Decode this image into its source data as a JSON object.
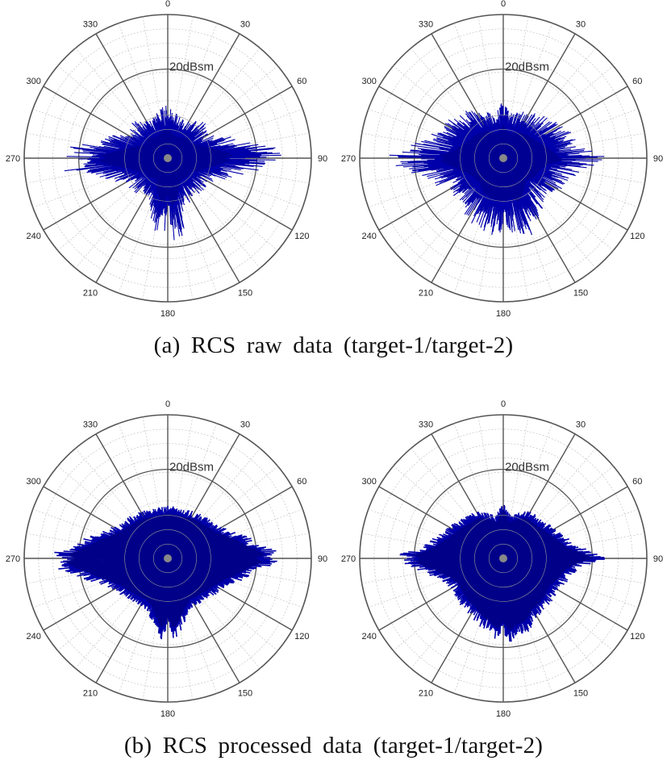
{
  "captions": {
    "a": "(a) RCS raw data (target-1/target-2)",
    "b": "(b) RCS processed data (target-1/target-2)"
  },
  "colors": {
    "trace": "#0000aa",
    "trace_dark": "#000080",
    "grid": "#bbbbbb",
    "spoke": "#555555",
    "ring": "#555555"
  },
  "chart_data": [
    {
      "type": "polar",
      "panel": "a",
      "title": "target-1",
      "angle_ticks": [
        "0",
        "30",
        "60",
        "90",
        "120",
        "150",
        "180",
        "210",
        "240",
        "270",
        "300",
        "330"
      ],
      "ring_label": "20dBsm",
      "grid": true,
      "series": [
        {
          "angles_deg": [
            0,
            15,
            30,
            45,
            60,
            75,
            80,
            85,
            88,
            90,
            92,
            95,
            100,
            105,
            120,
            135,
            150,
            160,
            170,
            175,
            180,
            185,
            190,
            200,
            210,
            225,
            240,
            255,
            260,
            265,
            268,
            270,
            272,
            275,
            280,
            285,
            300,
            315,
            330,
            345,
            360
          ],
          "radius_frac": [
            0.38,
            0.3,
            0.3,
            0.36,
            0.35,
            0.52,
            0.62,
            0.78,
            0.82,
            0.72,
            0.8,
            0.7,
            0.58,
            0.5,
            0.34,
            0.34,
            0.32,
            0.4,
            0.56,
            0.6,
            0.46,
            0.58,
            0.54,
            0.4,
            0.3,
            0.34,
            0.34,
            0.5,
            0.62,
            0.8,
            0.88,
            0.78,
            0.86,
            0.74,
            0.6,
            0.5,
            0.33,
            0.36,
            0.3,
            0.33,
            0.38
          ]
        }
      ]
    },
    {
      "type": "polar",
      "panel": "a",
      "title": "target-2",
      "angle_ticks": [
        "0",
        "30",
        "60",
        "90",
        "120",
        "150",
        "180",
        "210",
        "240",
        "270",
        "300",
        "330"
      ],
      "ring_label": "20dBsm",
      "grid": true,
      "series": [
        {
          "angles_deg": [
            0,
            10,
            20,
            30,
            45,
            60,
            70,
            80,
            85,
            88,
            90,
            92,
            95,
            100,
            110,
            120,
            135,
            150,
            160,
            170,
            180,
            190,
            200,
            210,
            225,
            240,
            250,
            260,
            265,
            268,
            270,
            272,
            275,
            280,
            290,
            300,
            315,
            330,
            340,
            350,
            360
          ],
          "radius_frac": [
            0.42,
            0.32,
            0.34,
            0.38,
            0.42,
            0.46,
            0.52,
            0.6,
            0.66,
            0.7,
            0.72,
            0.76,
            0.62,
            0.54,
            0.48,
            0.46,
            0.4,
            0.5,
            0.58,
            0.52,
            0.55,
            0.54,
            0.52,
            0.5,
            0.42,
            0.45,
            0.52,
            0.64,
            0.74,
            0.8,
            0.74,
            0.82,
            0.7,
            0.62,
            0.52,
            0.48,
            0.44,
            0.4,
            0.34,
            0.32,
            0.42
          ]
        }
      ]
    },
    {
      "type": "polar",
      "panel": "b",
      "title": "target-1",
      "angle_ticks": [
        "0",
        "30",
        "60",
        "90",
        "120",
        "150",
        "180",
        "210",
        "240",
        "270",
        "300",
        "330"
      ],
      "ring_label": "20dBsm",
      "grid": true,
      "series": [
        {
          "angles_deg": [
            0,
            10,
            20,
            30,
            45,
            60,
            70,
            80,
            85,
            88,
            90,
            92,
            95,
            100,
            110,
            120,
            135,
            150,
            160,
            170,
            175,
            180,
            185,
            190,
            200,
            210,
            225,
            240,
            250,
            260,
            265,
            268,
            270,
            272,
            275,
            280,
            290,
            300,
            315,
            330,
            340,
            350,
            360
          ],
          "radius_frac": [
            0.37,
            0.36,
            0.36,
            0.38,
            0.4,
            0.44,
            0.52,
            0.64,
            0.74,
            0.8,
            0.72,
            0.78,
            0.7,
            0.62,
            0.5,
            0.44,
            0.4,
            0.38,
            0.42,
            0.52,
            0.58,
            0.48,
            0.58,
            0.5,
            0.4,
            0.38,
            0.4,
            0.44,
            0.52,
            0.66,
            0.78,
            0.84,
            0.76,
            0.82,
            0.74,
            0.64,
            0.52,
            0.44,
            0.4,
            0.38,
            0.36,
            0.36,
            0.37
          ]
        }
      ]
    },
    {
      "type": "polar",
      "panel": "b",
      "title": "target-2",
      "angle_ticks": [
        "0",
        "30",
        "60",
        "90",
        "120",
        "150",
        "180",
        "210",
        "240",
        "270",
        "300",
        "330"
      ],
      "ring_label": "20dBsm",
      "grid": true,
      "series": [
        {
          "angles_deg": [
            0,
            5,
            10,
            20,
            30,
            45,
            60,
            70,
            80,
            85,
            88,
            90,
            92,
            95,
            100,
            110,
            120,
            135,
            150,
            160,
            170,
            175,
            180,
            185,
            190,
            200,
            210,
            225,
            240,
            250,
            260,
            265,
            268,
            270,
            272,
            275,
            280,
            290,
            300,
            315,
            330,
            340,
            350,
            355,
            360
          ],
          "radius_frac": [
            0.4,
            0.34,
            0.3,
            0.34,
            0.38,
            0.38,
            0.42,
            0.46,
            0.52,
            0.62,
            0.7,
            0.74,
            0.66,
            0.58,
            0.52,
            0.48,
            0.44,
            0.46,
            0.48,
            0.54,
            0.56,
            0.6,
            0.52,
            0.58,
            0.54,
            0.5,
            0.46,
            0.44,
            0.42,
            0.46,
            0.56,
            0.66,
            0.72,
            0.68,
            0.74,
            0.64,
            0.56,
            0.48,
            0.44,
            0.4,
            0.38,
            0.34,
            0.3,
            0.34,
            0.4
          ]
        }
      ]
    }
  ]
}
